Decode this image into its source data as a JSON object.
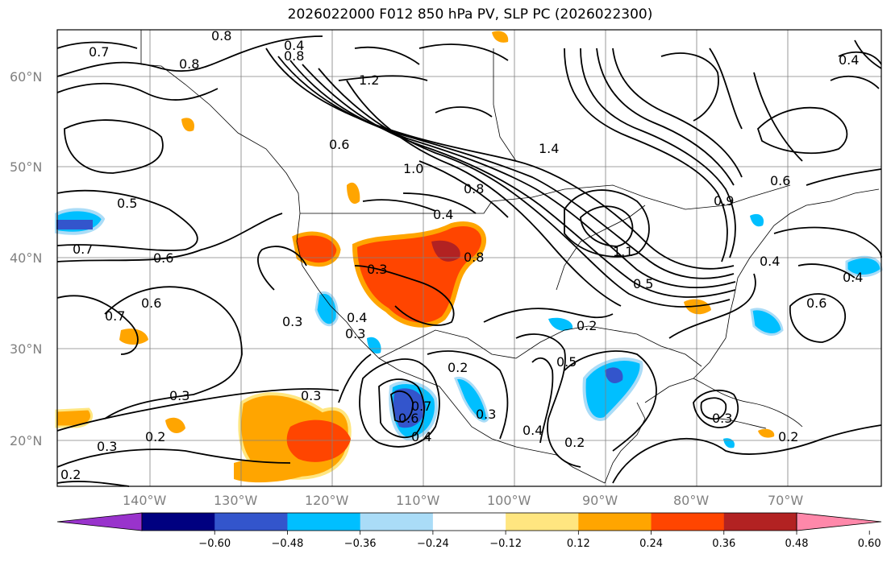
{
  "title": "2026022000 F012 850 hPa PV, SLP PC (2026022300)",
  "lat_labels": [
    "60°N",
    "50°N",
    "40°N",
    "30°N",
    "20°N"
  ],
  "lon_labels": [
    "140°W",
    "130°W",
    "120°W",
    "110°W",
    "100°W",
    "90°W",
    "80°W",
    "70°W"
  ],
  "colorbar": {
    "ticks": [
      "−0.60",
      "−0.48",
      "−0.36",
      "−0.24",
      "−0.12",
      "0.12",
      "0.24",
      "0.36",
      "0.48",
      "0.60"
    ],
    "colors": [
      "#9933cc",
      "#000080",
      "#3355cc",
      "#00bfff",
      "#aadcf7",
      "#ffffff",
      "#ffe680",
      "#ffa500",
      "#ff4500",
      "#b22222",
      "#ff88aa"
    ]
  },
  "contour_labels": [
    "0.4",
    "0.8",
    "1.2",
    "0.8",
    "0.7",
    "0.8",
    "0.6",
    "1.0",
    "0.4",
    "0.5",
    "0.7",
    "0.6",
    "0.6",
    "0.7",
    "0.3",
    "0.3",
    "0.2",
    "0.3",
    "0.2",
    "0.3",
    "0.3",
    "0.3",
    "0.4",
    "0.2",
    "0.5",
    "0.2",
    "0.4",
    "0.2",
    "0.3",
    "0.4",
    "0.6",
    "0.7",
    "0.8",
    "0.8",
    "0.4",
    "0.5",
    "1.4",
    "1.1",
    "0.9",
    "0.4",
    "0.6",
    "0.4",
    "0.3",
    "0.2",
    "0.6"
  ]
}
